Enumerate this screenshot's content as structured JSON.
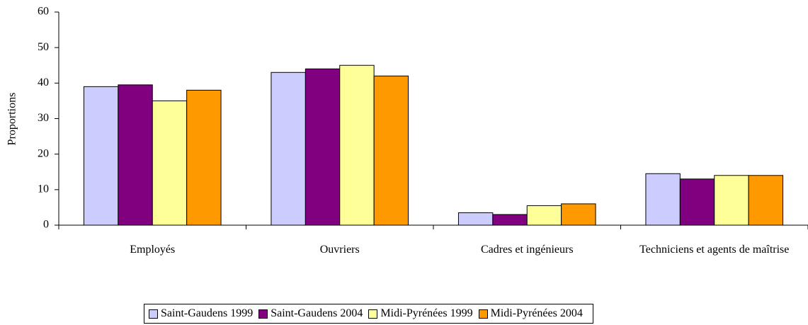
{
  "chart_data": {
    "type": "bar",
    "y_label": "Proportions",
    "categories": [
      "Employés",
      "Ouvriers",
      "Cadres et ingénieurs",
      "Techniciens et agents de maîtrise"
    ],
    "series": [
      {
        "name": "Saint-Gaudens 1999",
        "color": "#ccccff",
        "values": [
          39,
          43,
          3.5,
          14.5
        ]
      },
      {
        "name": "Saint-Gaudens 2004",
        "color": "#800080",
        "values": [
          39.5,
          44,
          3,
          13
        ]
      },
      {
        "name": "Midi-Pyrénées 1999",
        "color": "#ffff99",
        "values": [
          35,
          45,
          5.5,
          14
        ]
      },
      {
        "name": "Midi-Pyrénées 2004",
        "color": "#ff9900",
        "values": [
          38,
          42,
          6,
          14
        ]
      }
    ],
    "ylim": [
      0,
      60
    ],
    "yticks": [
      0,
      10,
      20,
      30,
      40,
      50,
      60
    ],
    "grid": false,
    "legend": "bottom"
  }
}
